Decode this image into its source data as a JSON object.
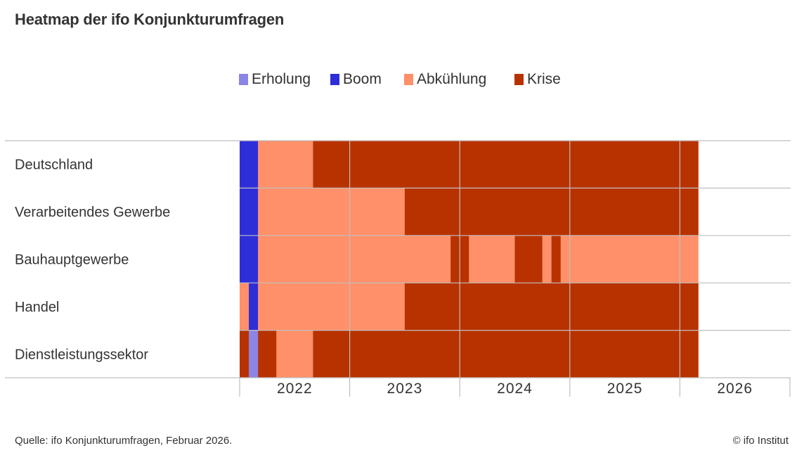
{
  "colors": {
    "Erholung": "#8b85e6",
    "Boom": "#2e2ed9",
    "Abkühlung": "#ff9069",
    "Krise": "#b83200"
  },
  "chart_data": {
    "type": "heatmap",
    "title": "Heatmap der ifo Konjunkturumfragen",
    "legend": [
      "Erholung",
      "Boom",
      "Abkühlung",
      "Krise"
    ],
    "legend_position": "top-center",
    "x_axis": {
      "unit": "month",
      "start": "2022-01",
      "end": "2026-12",
      "tick_labels": [
        "2022",
        "2023",
        "2024",
        "2025",
        "2026"
      ]
    },
    "rows": [
      {
        "label": "Deutschland",
        "segments": [
          {
            "state": "Boom",
            "from": "2022-01",
            "to": "2022-02"
          },
          {
            "state": "Abkühlung",
            "from": "2022-03",
            "to": "2022-08"
          },
          {
            "state": "Krise",
            "from": "2022-09",
            "to": "2026-02"
          }
        ]
      },
      {
        "label": "Verarbeitendes Gewerbe",
        "segments": [
          {
            "state": "Boom",
            "from": "2022-01",
            "to": "2022-02"
          },
          {
            "state": "Abkühlung",
            "from": "2022-03",
            "to": "2023-06"
          },
          {
            "state": "Krise",
            "from": "2023-07",
            "to": "2026-02"
          }
        ]
      },
      {
        "label": "Bauhauptgewerbe",
        "segments": [
          {
            "state": "Boom",
            "from": "2022-01",
            "to": "2022-02"
          },
          {
            "state": "Abkühlung",
            "from": "2022-03",
            "to": "2023-11"
          },
          {
            "state": "Krise",
            "from": "2023-12",
            "to": "2024-01"
          },
          {
            "state": "Abkühlung",
            "from": "2024-02",
            "to": "2024-06"
          },
          {
            "state": "Krise",
            "from": "2024-07",
            "to": "2024-09"
          },
          {
            "state": "Abkühlung",
            "from": "2024-10",
            "to": "2024-10"
          },
          {
            "state": "Krise",
            "from": "2024-11",
            "to": "2024-11"
          },
          {
            "state": "Abkühlung",
            "from": "2024-12",
            "to": "2026-02"
          }
        ]
      },
      {
        "label": "Handel",
        "segments": [
          {
            "state": "Abkühlung",
            "from": "2022-01",
            "to": "2022-01"
          },
          {
            "state": "Boom",
            "from": "2022-02",
            "to": "2022-02"
          },
          {
            "state": "Abkühlung",
            "from": "2022-03",
            "to": "2023-06"
          },
          {
            "state": "Krise",
            "from": "2023-07",
            "to": "2026-02"
          }
        ]
      },
      {
        "label": "Dienstleistungssektor",
        "segments": [
          {
            "state": "Krise",
            "from": "2022-01",
            "to": "2022-01"
          },
          {
            "state": "Erholung",
            "from": "2022-02",
            "to": "2022-02"
          },
          {
            "state": "Krise",
            "from": "2022-03",
            "to": "2022-04"
          },
          {
            "state": "Abkühlung",
            "from": "2022-05",
            "to": "2022-08"
          },
          {
            "state": "Krise",
            "from": "2022-09",
            "to": "2026-02"
          }
        ]
      }
    ]
  },
  "source": "Quelle: ifo Konjunkturumfragen, Februar 2026.",
  "credit": "© ifo Institut"
}
